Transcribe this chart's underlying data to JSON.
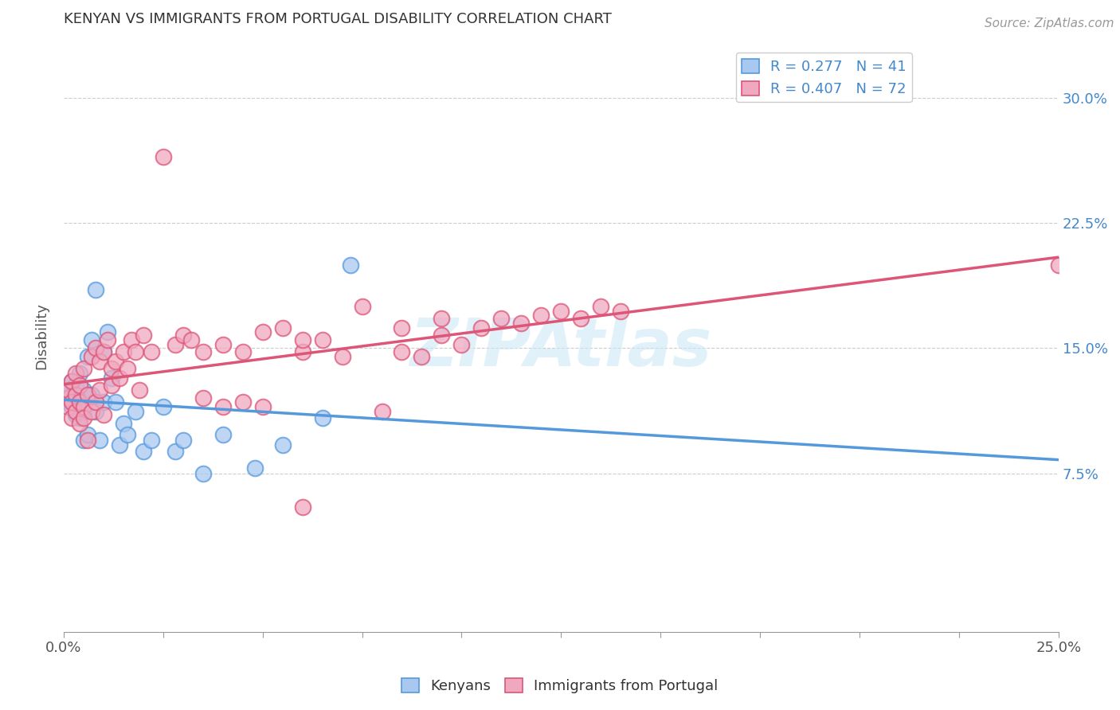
{
  "title": "KENYAN VS IMMIGRANTS FROM PORTUGAL DISABILITY CORRELATION CHART",
  "source": "Source: ZipAtlas.com",
  "ylabel": "Disability",
  "xlabel": "",
  "xlim": [
    0.0,
    0.25
  ],
  "ylim": [
    -0.02,
    0.335
  ],
  "x_ticks": [
    0.0,
    0.025,
    0.05,
    0.075,
    0.1,
    0.125,
    0.15,
    0.175,
    0.2,
    0.225,
    0.25
  ],
  "x_tick_labels": [
    "0.0%",
    "",
    "",
    "",
    "",
    "",
    "",
    "",
    "",
    "",
    "25.0%"
  ],
  "y_ticks": [
    0.075,
    0.15,
    0.225,
    0.3
  ],
  "y_tick_labels": [
    "7.5%",
    "15.0%",
    "22.5%",
    "30.0%"
  ],
  "legend_r1": "R = 0.277   N = 41",
  "legend_r2": "R = 0.407   N = 72",
  "color_kenyan": "#a8c8f0",
  "color_portugal": "#f0a8c0",
  "line_color_kenyan": "#5599dd",
  "line_color_portugal": "#dd5577",
  "watermark": "ZIPAtlas",
  "background_color": "#ffffff",
  "grid_color": "#cccccc",
  "kenyan_x": [
    0.001,
    0.001,
    0.002,
    0.002,
    0.002,
    0.003,
    0.003,
    0.003,
    0.004,
    0.004,
    0.004,
    0.005,
    0.005,
    0.005,
    0.006,
    0.006,
    0.007,
    0.007,
    0.008,
    0.008,
    0.009,
    0.01,
    0.01,
    0.011,
    0.012,
    0.013,
    0.014,
    0.015,
    0.016,
    0.018,
    0.02,
    0.022,
    0.025,
    0.028,
    0.03,
    0.035,
    0.04,
    0.048,
    0.055,
    0.065,
    0.072
  ],
  "kenyan_y": [
    0.118,
    0.125,
    0.122,
    0.115,
    0.13,
    0.12,
    0.11,
    0.128,
    0.118,
    0.108,
    0.135,
    0.112,
    0.125,
    0.095,
    0.145,
    0.098,
    0.155,
    0.122,
    0.185,
    0.112,
    0.095,
    0.148,
    0.118,
    0.16,
    0.132,
    0.118,
    0.092,
    0.105,
    0.098,
    0.112,
    0.088,
    0.095,
    0.115,
    0.088,
    0.095,
    0.075,
    0.098,
    0.078,
    0.092,
    0.108,
    0.2
  ],
  "portugal_x": [
    0.001,
    0.001,
    0.001,
    0.002,
    0.002,
    0.002,
    0.003,
    0.003,
    0.003,
    0.004,
    0.004,
    0.004,
    0.005,
    0.005,
    0.005,
    0.006,
    0.006,
    0.007,
    0.007,
    0.008,
    0.008,
    0.009,
    0.009,
    0.01,
    0.01,
    0.011,
    0.012,
    0.012,
    0.013,
    0.014,
    0.015,
    0.016,
    0.017,
    0.018,
    0.019,
    0.02,
    0.022,
    0.025,
    0.028,
    0.03,
    0.032,
    0.035,
    0.04,
    0.045,
    0.05,
    0.055,
    0.06,
    0.065,
    0.07,
    0.08,
    0.085,
    0.09,
    0.095,
    0.1,
    0.105,
    0.11,
    0.115,
    0.12,
    0.125,
    0.13,
    0.135,
    0.14,
    0.06,
    0.075,
    0.085,
    0.095,
    0.045,
    0.05,
    0.06,
    0.25,
    0.04,
    0.035
  ],
  "portugal_y": [
    0.12,
    0.115,
    0.125,
    0.118,
    0.108,
    0.13,
    0.122,
    0.112,
    0.135,
    0.118,
    0.105,
    0.128,
    0.115,
    0.108,
    0.138,
    0.122,
    0.095,
    0.145,
    0.112,
    0.15,
    0.118,
    0.142,
    0.125,
    0.148,
    0.11,
    0.155,
    0.138,
    0.128,
    0.142,
    0.132,
    0.148,
    0.138,
    0.155,
    0.148,
    0.125,
    0.158,
    0.148,
    0.265,
    0.152,
    0.158,
    0.155,
    0.148,
    0.152,
    0.148,
    0.16,
    0.162,
    0.148,
    0.155,
    0.145,
    0.112,
    0.148,
    0.145,
    0.158,
    0.152,
    0.162,
    0.168,
    0.165,
    0.17,
    0.172,
    0.168,
    0.175,
    0.172,
    0.155,
    0.175,
    0.162,
    0.168,
    0.118,
    0.115,
    0.055,
    0.2,
    0.115,
    0.12
  ]
}
